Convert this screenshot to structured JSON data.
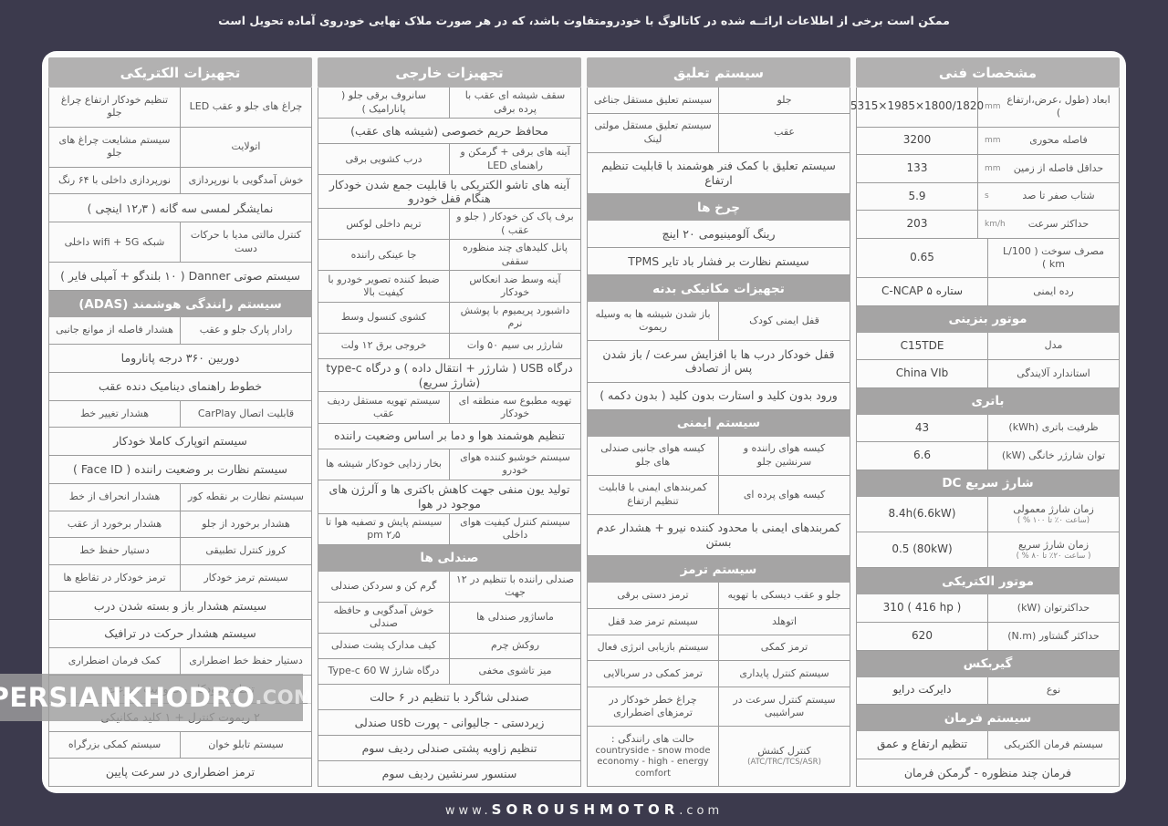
{
  "page": {
    "disclaimer": "ممکن است برخی از اطلاعات ارائــه شده در کاتالوگ با خودرومتفاوت باشد، که در هر صورت ملاک نهایی خودروی آماده تحویل است",
    "watermark_name": "PERSIANKHODRO",
    "watermark_tld": ".COM",
    "footer_www": "www.",
    "footer_name": "SOROUSHMOTOR",
    "footer_tld": ".com",
    "colors": {
      "background": "#3c3a4d",
      "panel": "#fbfbfb",
      "header_bar": "#b2b1b1",
      "section_bar": "#a5a4a4",
      "border": "#9b9b9b"
    }
  },
  "panels": [
    {
      "header": "مشخصات فنی",
      "ltr": true,
      "blocks": [
        {
          "r": "ابعاد (طول ،عرض،ارتفاع )",
          "u": "mm",
          "l": "5315×1985×1800/1820"
        },
        {
          "r": "فاصله محوری",
          "u": "mm",
          "l": "3200"
        },
        {
          "r": "حداقل فاصله از زمین",
          "u": "mm",
          "l": "133"
        },
        {
          "r": "شتاب صفر تا صد",
          "u": "s",
          "l": "5.9"
        },
        {
          "r": "حداکثر سرعت",
          "u": "km/h",
          "l": "203"
        },
        {
          "r": "مصرف سوخت ( L/100 km )",
          "l": "0.65"
        },
        {
          "r": "رده ایمنی",
          "l": "C-NCAP ۵ ستاره"
        },
        {
          "s": "موتور بنزینی"
        },
        {
          "r": "مدل",
          "l": "C15TDE"
        },
        {
          "r": "استاندارد آلایندگی",
          "l": "China VIb"
        },
        {
          "s": "باتری"
        },
        {
          "r": "ظرفیت باتری (kWh)",
          "l": "43"
        },
        {
          "r": "توان شارژر خانگی (kW)",
          "l": "6.6"
        },
        {
          "s": "شارژ سریع DC"
        },
        {
          "r": "زمان شارژ معمولی",
          "rn": "(ساعت ۰٪ تا ۱۰۰ % )",
          "l": "8.4h(6.6kW)"
        },
        {
          "r": "زمان شارژ سریع",
          "rn": "( ساعت ۲۰٪ تا ۸۰ % )",
          "l": "0.5  (80kW)"
        },
        {
          "s": "موتور الکتریکی"
        },
        {
          "r": "حداکثرتوان (kW)",
          "l": "310 ( 416 hp )"
        },
        {
          "r": "حداکثر گشتاور (N.m)",
          "l": "620"
        },
        {
          "s": "گیربکس"
        },
        {
          "r": "نوع",
          "l": "دایرکت درایو"
        },
        {
          "s": "سیستم فرمان"
        },
        {
          "r": "سیستم فرمان الکتریکی",
          "l": "تنظیم ارتفاع و عمق"
        },
        {
          "f": "فرمان چند منظوره - گرمکن فرمان"
        }
      ]
    },
    {
      "header": "سیستم تعلیق",
      "blocks": [
        {
          "r": "جلو",
          "l": "سیستم تعلیق مستقل جناغی"
        },
        {
          "r": "عقب",
          "l": "سیستم تعلیق مستقل مولتی لینک"
        },
        {
          "f": "سیستم تعلیق با کمک فنر هوشمند با قابلیت تنظیم ارتفاع"
        },
        {
          "s": "چرخ ها"
        },
        {
          "f": "رینگ آلومینیومی ۲۰ اینچ"
        },
        {
          "f": "سیستم نظارت بر فشار باد تایر TPMS"
        },
        {
          "s": "تجهیزات مکانیکی بدنه"
        },
        {
          "r": "قفل ایمنی کودک",
          "l": "باز شدن شیشه ها به وسیله ریموت"
        },
        {
          "f": "قفل خودکار درب ها با افزایش سرعت / باز شدن پس از تصادف"
        },
        {
          "f": "ورود بدون کلید و استارت بدون کلید ( بدون دکمه )"
        },
        {
          "s": "سیستم ایمنی"
        },
        {
          "r": "کیسه هوای راننده و سرنشین جلو",
          "l": "کیسه هوای جانبی صندلی های جلو"
        },
        {
          "r": "کیسه هوای پرده ای",
          "l": "کمربندهای ایمنی با قابلیت تنظیم ارتفاع"
        },
        {
          "f": "کمربندهای ایمنی با محدود کننده نیرو + هشدار عدم بستن"
        },
        {
          "s": "سیستم ترمز"
        },
        {
          "r": "جلو و عقب دیسکی با تهویه",
          "l": "ترمز دستی برقی"
        },
        {
          "r": "اتوهلد",
          "l": "سیستم ترمز ضد قفل"
        },
        {
          "r": "ترمز کمکی",
          "l": "سیستم بازیابی انرژی فعال"
        },
        {
          "r": "سیستم کنترل پایداری",
          "l": "ترمز کمکی در سربالایی"
        },
        {
          "r": "سیستم کنترل سرعت در سراشیبی",
          "l": "چراغ خطر خودکار در ترمزهای اضطراری"
        },
        {
          "r": "کنترل کشش",
          "rn": "(ATC/TRC/TCS/ASR)",
          "l": "حالت های رانندگی :",
          "ln": [
            "countryside - snow mode",
            "economy - high - energy",
            "comfort"
          ]
        }
      ]
    },
    {
      "header": "تجهیزات خارجی",
      "blocks": [
        {
          "r": "سقف شیشه ای عقب با پرده برقی",
          "l": "سانروف برقی جلو ( پانارامیک )"
        },
        {
          "f": "محافظ حریم خصوصی (شیشه های عقب)"
        },
        {
          "r": "آینه های برقی + گرمکن و راهنمای LED",
          "l": "درب کشویی برقی"
        },
        {
          "f": "آینه های تاشو الکتریکی با قابلیت جمع شدن خودکار هنگام قفل خودرو"
        },
        {
          "r": "برف پاک کن خودکار ( جلو و عقب )",
          "l": "تریم داخلی لوکس"
        },
        {
          "r": "پانل کلیدهای چند منظوره سقفی",
          "l": "جا عینکی راننده"
        },
        {
          "r": "آینه وسط ضد انعکاس خودکار",
          "l": "ضبط کننده تصویر خودرو با کیفیت بالا"
        },
        {
          "r": "داشبورد پریمیوم با پوشش نرم",
          "l": "کشوی کنسول وسط"
        },
        {
          "r": "شارژر بی سیم ۵۰ وات",
          "l": "خروجی برق ۱۲ ولت"
        },
        {
          "f": "درگاه USB ( شارژر + انتقال داده ) و درگاه type-c (شارژ سریع)"
        },
        {
          "r": "تهویه مطبوع سه منطقه ای خودکار",
          "l": "سیستم تهویه مستقل ردیف عقب"
        },
        {
          "f": "تنظیم هوشمند هوا و دما بر اساس وضعیت راننده"
        },
        {
          "r": "سیستم خوشبو کننده هوای خودرو",
          "l": "بخار زدایی خودکار شیشه ها"
        },
        {
          "f": "تولید یون منفی جهت کاهش باکتری ها و آلرژن های موجود در هوا"
        },
        {
          "r": "سیستم کنترل کیفیت هوای داخلی",
          "l": "سیستم پایش و تصفیه هوا تا ۲٫۵ pm"
        },
        {
          "s": "صندلی ها"
        },
        {
          "r": "صندلی راننده با تنظیم در ۱۲ جهت",
          "l": "گرم کن و سردکن صندلی"
        },
        {
          "r": "ماساژور صندلی ها",
          "l": "خوش آمدگویی و حافظه صندلی"
        },
        {
          "r": "روکش چرم",
          "l": "کیف مدارک پشت صندلی"
        },
        {
          "r": "میز تاشوی مخفی",
          "l": "درگاه شارژ Type-c 60 W"
        },
        {
          "f": "صندلی شاگرد با تنظیم در ۶ حالت"
        },
        {
          "f": "زیردستی - جالیوانی - پورت usb صندلی"
        },
        {
          "f": "تنظیم زاویه پشتی صندلی ردیف سوم"
        },
        {
          "f": "سنسور سرنشین ردیف سوم"
        }
      ]
    },
    {
      "header": "تجهیزات الکتریکی",
      "blocks": [
        {
          "r": "چراغ های جلو و عقب LED",
          "l": "تنظیم خودکار ارتفاع چراغ جلو"
        },
        {
          "r": "اتولایت",
          "l": "سیستم مشایعت چراغ های جلو"
        },
        {
          "r": "خوش آمدگویی با نورپردازی",
          "l": "نورپردازی داخلی با ۶۴ رنگ"
        },
        {
          "f": "نمایشگر لمسی سه گانه ( ۱۲٫۳ اینچی )"
        },
        {
          "r": "کنترل مالتی مدیا با حرکات دست",
          "l": "شبکه wifi + 5G داخلی"
        },
        {
          "f": "سیستم صوتی Danner ( ۱۰ بلندگو + آمپلی فایر )"
        },
        {
          "s": "سیستم رانندگی هوشمند (ADAS)"
        },
        {
          "r": "رادار پارک جلو و عقب",
          "l": "هشدار فاصله از موانع جانبی"
        },
        {
          "f": "دوربین ۳۶۰ درجه پاناروما"
        },
        {
          "f": "خطوط راهنمای دینامیک دنده عقب"
        },
        {
          "r": "قابلیت اتصال CarPlay",
          "l": "هشدار تغییر خط"
        },
        {
          "f": "سیستم اتوپارک کاملا خودکار"
        },
        {
          "f": "سیستم نظارت بر وضعیت راننده ( Face ID )"
        },
        {
          "r": "سیستم نظارت بر نقطه کور",
          "l": "هشدار انحراف از خط"
        },
        {
          "r": "هشدار برخورد از جلو",
          "l": "هشدار برخورد از عقب"
        },
        {
          "r": "کروز کنترل تطبیقی",
          "l": "دستیار حفظ خط"
        },
        {
          "r": "سیستم ترمز خودکار",
          "l": "ترمز خودکار در تقاطع ها"
        },
        {
          "f": "سیستم هشدار باز و بسته شدن درب"
        },
        {
          "f": "سیستم هشدار حرکت در ترافیک"
        },
        {
          "r": "دستیار حفظ خط اضطراری",
          "l": "کمک فرمان اضطراری"
        },
        {
          "f": "تنظیم خودکار محدودیت سرعت"
        },
        {
          "f": "۲ ریموت کنترل + ۱ کلید مکانیکی"
        },
        {
          "r": "سیستم تابلو خوان",
          "l": "سیستم کمکی بزرگراه"
        },
        {
          "f": "ترمز اضطراری در سرعت پایین"
        }
      ]
    }
  ]
}
